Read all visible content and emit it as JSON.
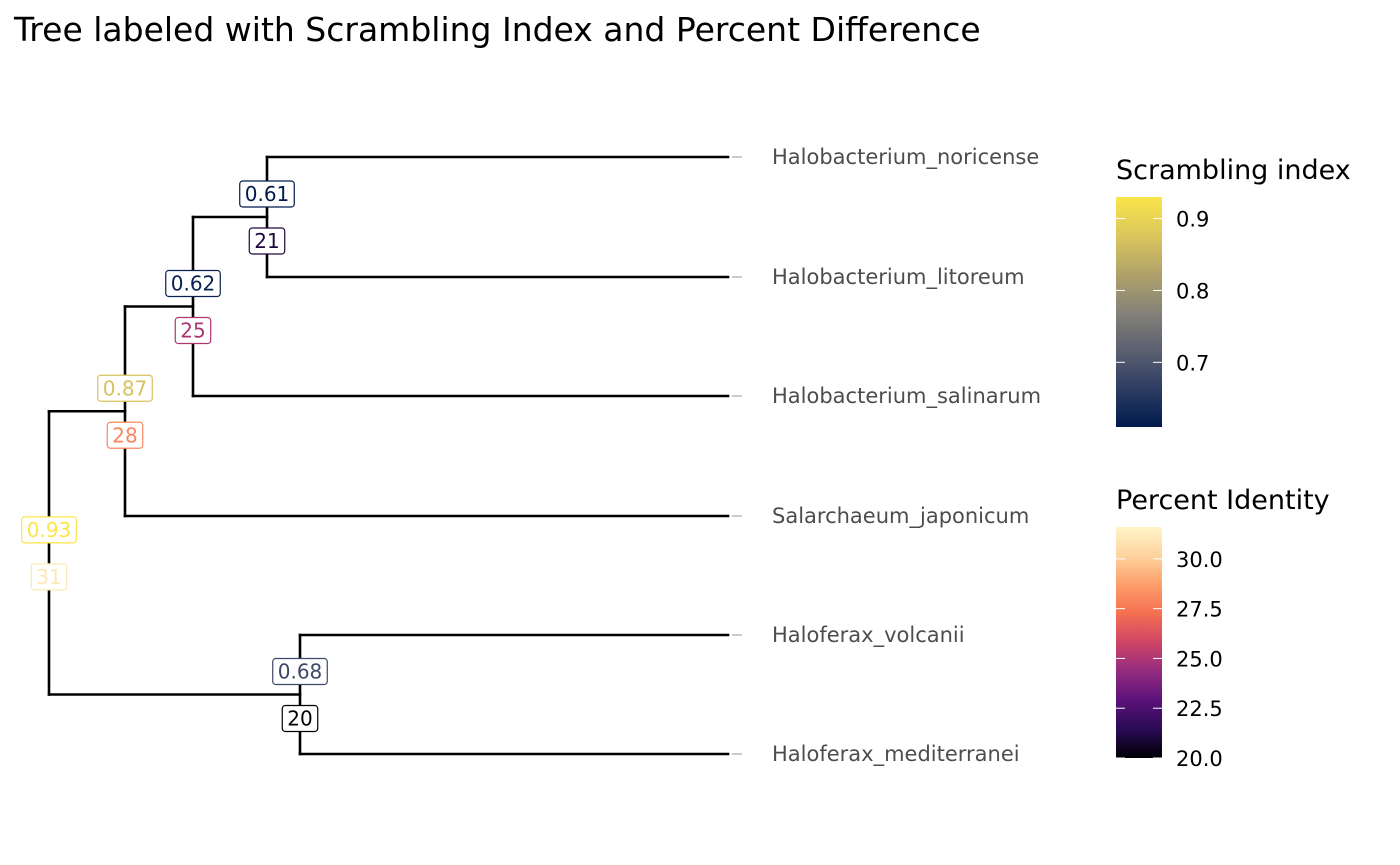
{
  "chart_data": {
    "type": "tree",
    "title": "Tree labeled with Scrambling Index and Percent Difference",
    "tips": [
      "Halobacterium_noricense",
      "Halobacterium_litoreum",
      "Halobacterium_salinarum",
      "Salarchaeum_japonicum",
      "Haloferax_volcanii",
      "Haloferax_mediterranei"
    ],
    "internal_nodes": [
      {
        "id": "n_noricense_litoreum",
        "children": [
          "Halobacterium_noricense",
          "Halobacterium_litoreum"
        ],
        "scrambling_index": 0.61,
        "percent_identity": 21
      },
      {
        "id": "n_halobacterium",
        "children": [
          "n_noricense_litoreum",
          "Halobacterium_salinarum"
        ],
        "scrambling_index": 0.62,
        "percent_identity": 25
      },
      {
        "id": "n_halobacteriaceae",
        "children": [
          "n_halobacterium",
          "Salarchaeum_japonicum"
        ],
        "scrambling_index": 0.87,
        "percent_identity": 28
      },
      {
        "id": "n_root",
        "children": [
          "n_halobacteriaceae",
          "n_haloferax"
        ],
        "scrambling_index": 0.93,
        "percent_identity": 31
      },
      {
        "id": "n_haloferax",
        "children": [
          "Haloferax_volcanii",
          "Haloferax_mediterranei"
        ],
        "scrambling_index": 0.68,
        "percent_identity": 20
      }
    ],
    "legends": {
      "scrambling": {
        "title": "Scrambling index",
        "range": [
          0.61,
          0.93
        ],
        "ticks": [
          "0.9",
          "0.8",
          "0.7"
        ],
        "colors": [
          "#001A4D",
          "#2D3D63",
          "#5C6070",
          "#858278",
          "#B1A26A",
          "#DBC75C",
          "#FBE54A"
        ]
      },
      "identity": {
        "title": "Percent Identity",
        "range": [
          20,
          31.6
        ],
        "ticks": [
          "30.0",
          "27.5",
          "25.0",
          "22.5",
          "20.0"
        ],
        "colors": [
          "#000004",
          "#2A0A55",
          "#5B127A",
          "#932B7E",
          "#CF4466",
          "#F56F51",
          "#FD9E6A",
          "#FDD39E",
          "#FFF5C8"
        ]
      }
    }
  }
}
